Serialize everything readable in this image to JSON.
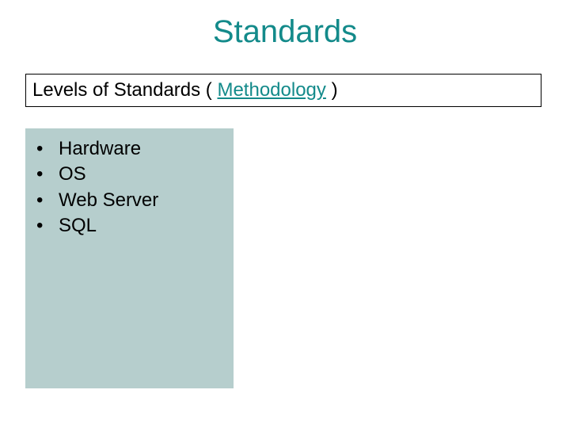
{
  "title": {
    "text": "Standards",
    "color": "#138a8a"
  },
  "subtitle": {
    "prefix": "Levels of Standards ( ",
    "highlight": "Methodology",
    "suffix": " )",
    "prefix_color": "#000000",
    "highlight_color": "#138a8a",
    "border_color": "#000000"
  },
  "list": {
    "background_color": "#b6cecd",
    "bullet_char": "•",
    "items": [
      {
        "text": "Hardware"
      },
      {
        "text": "OS"
      },
      {
        "text": "Web Server"
      },
      {
        "text": "SQL"
      }
    ]
  }
}
